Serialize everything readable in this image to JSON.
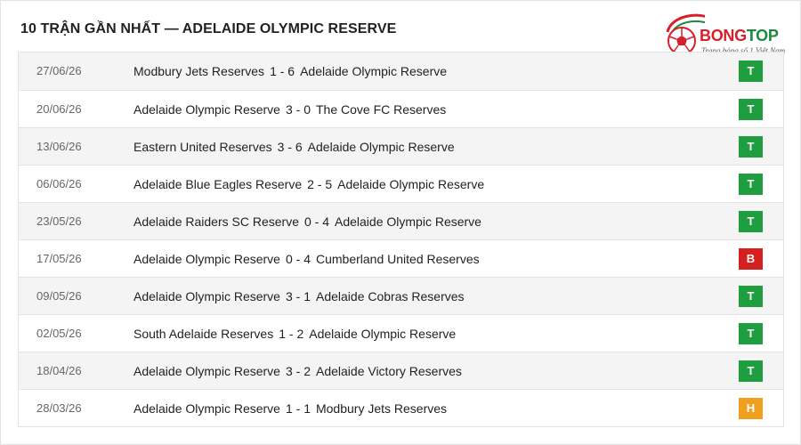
{
  "header": {
    "title": "10 TRẬN GẦN NHẤT — ADELAIDE OLYMPIC RESERVE"
  },
  "logo": {
    "part1": "BONG",
    "part2": "TOP",
    "tagline": "Trang bóng số 1 Việt Nam",
    "icon": "soccer-ball-icon",
    "colors": {
      "red": "#d6202a",
      "green": "#1c8a3c"
    }
  },
  "result_colors": {
    "T": "#1e9e3e",
    "B": "#d42020",
    "H": "#f0a020"
  },
  "matches": [
    {
      "date": "27/06/26",
      "home": "Modbury Jets Reserves",
      "score": "1 - 6",
      "away": "Adelaide Olympic Reserve",
      "result": "T"
    },
    {
      "date": "20/06/26",
      "home": "Adelaide Olympic Reserve",
      "score": "3 - 0",
      "away": "The Cove FC Reserves",
      "result": "T"
    },
    {
      "date": "13/06/26",
      "home": "Eastern United Reserves",
      "score": "3 - 6",
      "away": "Adelaide Olympic Reserve",
      "result": "T"
    },
    {
      "date": "06/06/26",
      "home": "Adelaide Blue Eagles Reserve",
      "score": "2 - 5",
      "away": "Adelaide Olympic Reserve",
      "result": "T"
    },
    {
      "date": "23/05/26",
      "home": "Adelaide Raiders SC Reserve",
      "score": "0 - 4",
      "away": "Adelaide Olympic Reserve",
      "result": "T"
    },
    {
      "date": "17/05/26",
      "home": "Adelaide Olympic Reserve",
      "score": "0 - 4",
      "away": "Cumberland United Reserves",
      "result": "B"
    },
    {
      "date": "09/05/26",
      "home": "Adelaide Olympic Reserve",
      "score": "3 - 1",
      "away": "Adelaide Cobras Reserves",
      "result": "T"
    },
    {
      "date": "02/05/26",
      "home": "South Adelaide Reserves",
      "score": "1 - 2",
      "away": "Adelaide Olympic Reserve",
      "result": "T"
    },
    {
      "date": "18/04/26",
      "home": "Adelaide Olympic Reserve",
      "score": "3 - 2",
      "away": "Adelaide Victory Reserves",
      "result": "T"
    },
    {
      "date": "28/03/26",
      "home": "Adelaide Olympic Reserve",
      "score": "1 - 1",
      "away": "Modbury Jets Reserves",
      "result": "H"
    }
  ]
}
